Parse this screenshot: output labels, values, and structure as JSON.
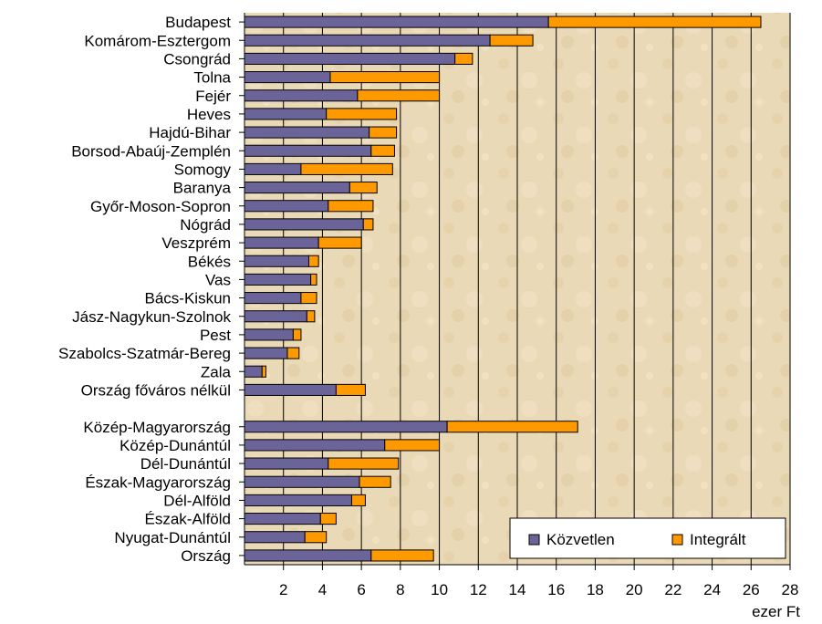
{
  "chart_data": {
    "type": "bar",
    "orientation": "horizontal",
    "stacked": true,
    "xlabel": "ezer Ft",
    "xlim": [
      0,
      28
    ],
    "xticks": [
      2,
      4,
      6,
      8,
      10,
      12,
      14,
      16,
      18,
      20,
      22,
      24,
      26,
      28
    ],
    "grid": "vertical",
    "legend_position": "bottom-right",
    "categories": [
      "Budapest",
      "Komárom-Esztergom",
      "Csongrád",
      "Tolna",
      "Fejér",
      "Heves",
      "Hajdú-Bihar",
      "Borsod-Abaúj-Zemplén",
      "Somogy",
      "Baranya",
      "Győr-Moson-Sopron",
      "Nógrád",
      "Veszprém",
      "Békés",
      "Vas",
      "Bács-Kiskun",
      "Jász-Nagykun-Szolnok",
      "Pest",
      "Szabolcs-Szatmár-Bereg",
      "Zala",
      "Ország főváros nélkül",
      "",
      "Közép-Magyarország",
      "Közép-Dunántúl",
      "Dél-Dunántúl",
      "Észak-Magyarország",
      "Dél-Alföld",
      "Észak-Alföld",
      "Nyugat-Dunántúl",
      "Ország"
    ],
    "series": [
      {
        "name": "Közvetlen",
        "color": "#6b6499",
        "values": [
          15.6,
          12.6,
          10.8,
          4.4,
          5.8,
          4.2,
          6.4,
          6.5,
          2.9,
          5.4,
          4.3,
          6.1,
          3.8,
          3.3,
          3.4,
          2.9,
          3.2,
          2.5,
          2.2,
          0.9,
          4.7,
          null,
          10.4,
          7.2,
          4.3,
          5.9,
          5.5,
          3.9,
          3.1,
          6.5
        ]
      },
      {
        "name": "Integrált",
        "color": "#ff9900",
        "values": [
          10.9,
          2.2,
          0.9,
          5.6,
          4.2,
          3.6,
          1.4,
          1.2,
          4.7,
          1.4,
          2.3,
          0.5,
          2.2,
          0.5,
          0.3,
          0.8,
          0.4,
          0.4,
          0.6,
          0.2,
          1.5,
          null,
          6.7,
          2.8,
          3.6,
          1.6,
          0.7,
          0.8,
          1.1,
          3.2
        ]
      }
    ]
  }
}
